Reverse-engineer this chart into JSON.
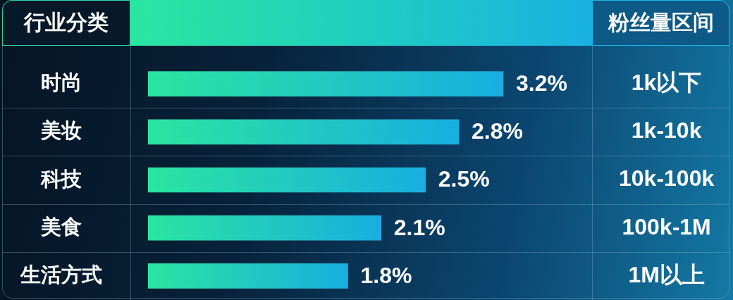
{
  "chart_data": {
    "type": "bar",
    "orientation": "horizontal",
    "ylabel": "行业分类",
    "y2label": "粉丝量区间",
    "categories": [
      "时尚",
      "美妆",
      "科技",
      "美食",
      "生活方式"
    ],
    "y2_categories": [
      "1k以下",
      "1k-10k",
      "10k-100k",
      "100k-1M",
      "1M以上"
    ],
    "values": [
      3.2,
      2.8,
      2.5,
      2.1,
      1.8
    ],
    "value_labels": [
      "3.2%",
      "2.8%",
      "2.5%",
      "2.1%",
      "1.8%"
    ],
    "color": "#20c9c0",
    "xlim": [
      0,
      4
    ],
    "grid": "y",
    "tick_labels": "y"
  }
}
